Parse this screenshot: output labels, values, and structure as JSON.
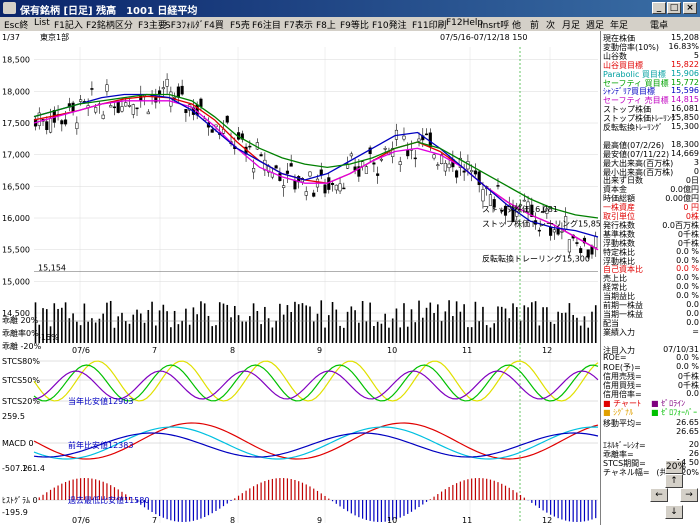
{
  "window": {
    "title": "保有銘柄 [日足] 残高　1001 日経平均"
  },
  "menu": [
    "Esc終",
    "List",
    "F1記入",
    "F2銘柄区分",
    "F3主要",
    "SF3ﾌｫﾙﾀﾞ",
    "F4買",
    "F5売",
    "F6注目",
    "F7表示",
    "F8上",
    "F9等比",
    "F10発注",
    "F11印刷",
    "F12Help",
    "Insrt呼",
    "他",
    "前",
    "次",
    "月足",
    "週足",
    "年足",
    "電卓"
  ],
  "header": {
    "page": "1/37",
    "market": "東京1部",
    "range": "07/5/16-07/12/18 150"
  },
  "price_axis": [
    "18,500",
    "18,000",
    "17,500",
    "17,000",
    "16,500",
    "16,000",
    "15,500",
    "15,000",
    "14,500"
  ],
  "months_top": [
    "07/6",
    "7",
    "8",
    "9",
    "10",
    "11",
    "12"
  ],
  "months_bottom": [
    "07/6",
    "7",
    "8",
    "9",
    "10",
    "11",
    "12"
  ],
  "annotations": {
    "current_price": "15,154",
    "stop": "ストップ株価16,081",
    "stop_trail": "ストップ株価トレーリング15,850",
    "reverse_trail": "反転転換トレーリング15,300",
    "sakishi": "乖離 20%",
    "ratio0": "乖離率0%",
    "ratio_m20": "乖離 -20%",
    "m15": "-15%",
    "stcs80": "STCS80%",
    "stcs50": "STCS50%",
    "stcs20": "STCS20%",
    "prev_year": "当年比安値12903",
    "macd": "MACD 0",
    "macd_top": "259.5",
    "macd_bottom": "-507.2",
    "hist_top": "161.4",
    "prev_year2": "前年比安値12383",
    "hist": "ﾋｽﾄｸﾞﾗﾑ 0",
    "hist_low": "過去最低比安値11580",
    "hist_min": "-195.9"
  },
  "legend_sample": [
    "チャーﾄ",
    "ｾﾞﾛﾗｲﾝ",
    "ｼｸﾞﾅﾙ",
    "ｾﾞﾛﾗｲﾝ"
  ],
  "panel": {
    "rows": [
      {
        "k": "現在株価",
        "v": "15,208",
        "c": "#000"
      },
      {
        "k": "変動倍率(10%)",
        "v": "16.83%",
        "c": "#000"
      },
      {
        "k": "山谷数",
        "v": "5",
        "c": "#000"
      },
      {
        "k": "山谷買目標",
        "v": "15,822",
        "c": "#e00000"
      },
      {
        "k": "Parabolic 買目標",
        "v": "15,906",
        "c": "#00a0a0"
      },
      {
        "k": "セーフティ 買目標",
        "v": "15,772",
        "c": "#00a000"
      },
      {
        "k": "ｼｬﾝﾃﾞﾘｱ買目標",
        "v": "15,596",
        "c": "#0000c0"
      },
      {
        "k": "セーフティ 売目標",
        "v": "14,815",
        "c": "#c000c0"
      },
      {
        "k": "ストップ株価",
        "v": "16,081",
        "c": "#000"
      },
      {
        "k": "ストップ株価ﾄﾚｰﾘﾝｸﾞ",
        "v": "15,850",
        "c": "#000"
      },
      {
        "k": "反転転換ﾄﾚｰﾘﾝｸﾞ",
        "v": "15,300",
        "c": "#000"
      },
      {
        "k": "",
        "v": "",
        "c": "#000"
      },
      {
        "k": "最高値(07/2/26)",
        "v": "18,300",
        "c": "#000"
      },
      {
        "k": "最安値(07/11/22)",
        "v": "14,669",
        "c": "#000"
      },
      {
        "k": "最大出来高(百万株)",
        "v": "3",
        "c": "#000"
      },
      {
        "k": "最小出来高(百万株)",
        "v": "0",
        "c": "#000"
      },
      {
        "k": "出来ず日数",
        "v": "0日",
        "c": "#000"
      },
      {
        "k": "資本金",
        "v": "0.0億円",
        "c": "#000"
      },
      {
        "k": "時価総額",
        "v": "0.00億円",
        "c": "#000"
      },
      {
        "k": "一株資産",
        "v": "0 円",
        "c": "#e00000"
      },
      {
        "k": "取引単位",
        "v": "0株",
        "c": "#e00000"
      },
      {
        "k": "発行株数",
        "v": "0.0百万株",
        "c": "#000"
      },
      {
        "k": "基準株数",
        "v": "0千株",
        "c": "#000"
      },
      {
        "k": "浮動株数",
        "v": "0千株",
        "c": "#000"
      },
      {
        "k": "特定株比",
        "v": "0.0 %",
        "c": "#000"
      },
      {
        "k": "浮動株比",
        "v": "0.0 %",
        "c": "#000"
      },
      {
        "k": "自己資本比",
        "v": "0.0 %",
        "c": "#e00000"
      },
      {
        "k": "売上比",
        "v": "0.0 %",
        "c": "#000"
      },
      {
        "k": "経常比",
        "v": "0.0 %",
        "c": "#000"
      },
      {
        "k": "当期益比",
        "v": "0.0 %",
        "c": "#000"
      },
      {
        "k": "前期一株益",
        "v": "0.0",
        "c": "#000"
      },
      {
        "k": "当期一株益",
        "v": "0.0",
        "c": "#000"
      },
      {
        "k": "配当",
        "v": "0.0",
        "c": "#000"
      },
      {
        "k": "業績入力",
        "v": "=",
        "c": "#000"
      },
      {
        "k": "",
        "v": "",
        "c": "#000"
      },
      {
        "k": "注目入力",
        "v": "07/10/31",
        "c": "#000"
      },
      {
        "k": "ROE=",
        "v": "0.0 %",
        "c": "#000"
      },
      {
        "k": "ROE(予)=",
        "v": "0.0 %",
        "c": "#000"
      },
      {
        "k": "信用売残=",
        "v": "0千株",
        "c": "#000"
      },
      {
        "k": "信用買残=",
        "v": "0千株",
        "c": "#000"
      },
      {
        "k": "信用倍率=",
        "v": "0.0",
        "c": "#000"
      }
    ],
    "legend": [
      {
        "k": "■ チャーﾄ",
        "c": "#e00000"
      },
      {
        "k": "■ ｾﾞﾛﾗｲﾝ",
        "c": "#800080"
      },
      {
        "k": "■ ｼｸﾞﾅﾙ",
        "c": "#e0a000"
      },
      {
        "k": "■ ｾﾞﾛﾌｫｰﾊﾞｰ",
        "c": "#00c000"
      }
    ],
    "ma": {
      "k": "移動平均=",
      "v1": "26.65",
      "v2": "26.65"
    },
    "rows2": [
      {
        "k": "ｴﾈﾙｷﾞｰﾚｼｵ=",
        "v": "20"
      },
      {
        "k": "乖離率=",
        "v": "26"
      },
      {
        "k": "STCS期間=",
        "v": "14 50"
      },
      {
        "k": "チャネル幅=",
        "v": "(共通) 20%"
      }
    ],
    "arrows": [
      "20%",
      "↑",
      "←",
      "→",
      "↓"
    ]
  },
  "chart_data": {
    "type": "candlestick",
    "y_range": [
      14500,
      18700
    ],
    "series_moving_avg": [
      {
        "color": "#e00000",
        "values": [
          17550,
          17620,
          17700,
          17800,
          17880,
          17920,
          17900,
          17800,
          17550,
          17200,
          16900,
          16700,
          16600,
          16550,
          16700,
          16900,
          17100,
          17200,
          17050,
          16800,
          16500,
          16250,
          16050,
          15900,
          15700,
          15500
        ]
      },
      {
        "color": "#e000e0",
        "values": [
          17500,
          17600,
          17700,
          17800,
          17850,
          17850,
          17850,
          17750,
          17450,
          17100,
          16800,
          16650,
          16550,
          16550,
          16700,
          16900,
          17050,
          17100,
          17000,
          16800,
          16500,
          16250,
          16050,
          15900,
          15700,
          15500
        ]
      },
      {
        "color": "#0000c0",
        "values": [
          17600,
          17700,
          17800,
          17900,
          17950,
          17950,
          17900,
          17700,
          17400,
          17100,
          16900,
          16700,
          16600,
          16700,
          16900,
          17100,
          17300,
          17350,
          17100,
          16800,
          16500,
          16200,
          15950,
          15850,
          15800,
          15700
        ]
      },
      {
        "color": "#008000",
        "values": [
          17600,
          17700,
          17800,
          17850,
          17900,
          17950,
          17950,
          17850,
          17600,
          17300,
          17100,
          16950,
          16850,
          16800,
          16850,
          16950,
          17100,
          17200,
          17100,
          16900,
          16700,
          16500,
          16300,
          16150,
          16050,
          16000
        ]
      }
    ]
  }
}
